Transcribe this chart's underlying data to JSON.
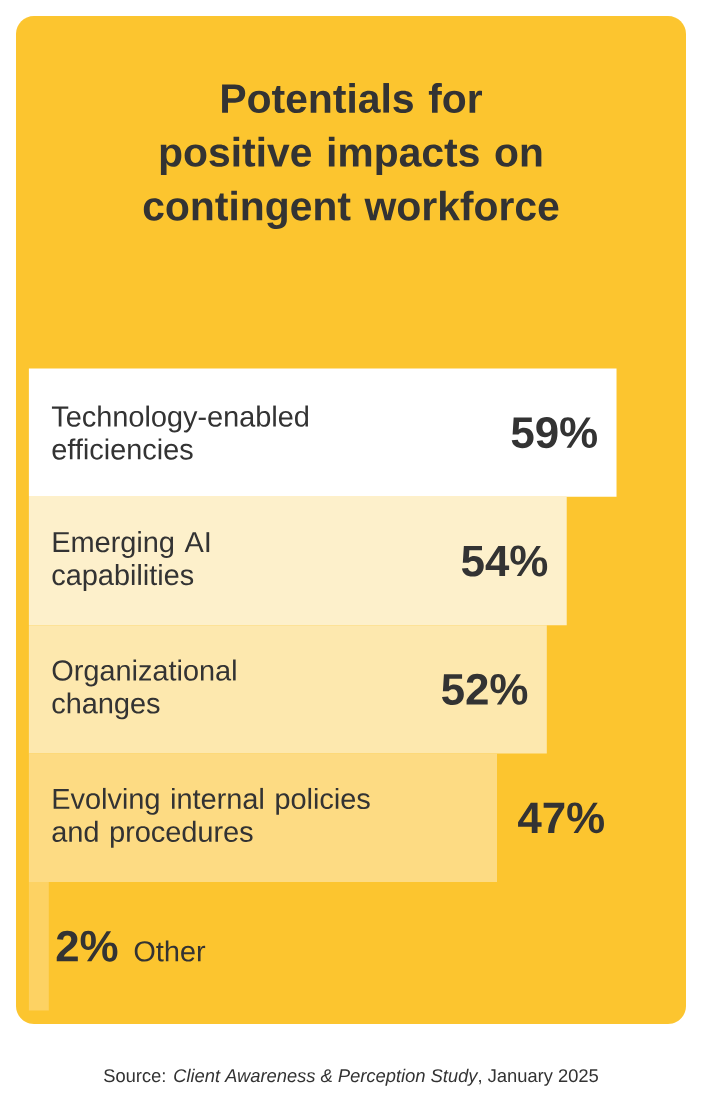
{
  "chart_data": {
    "type": "bar",
    "orientation": "horizontal",
    "title": "Potentials for positive impacts on contingent workforce",
    "categories": [
      "Technology-enabled efficiencies",
      "Emerging AI capabilities",
      "Organizational changes",
      "Evolving internal policies and procedures",
      "Other"
    ],
    "values": [
      59,
      54,
      52,
      47,
      2
    ],
    "colors": [
      "#ffffff",
      "#fdf0cb",
      "#fde8ae",
      "#fddb83",
      "#fdd263"
    ],
    "value_labels": [
      "59%",
      "54%",
      "52%",
      "47%",
      "2%"
    ],
    "annotations": [
      "Source: *Client Awareness & Perception Study*, January 2025"
    ]
  }
}
